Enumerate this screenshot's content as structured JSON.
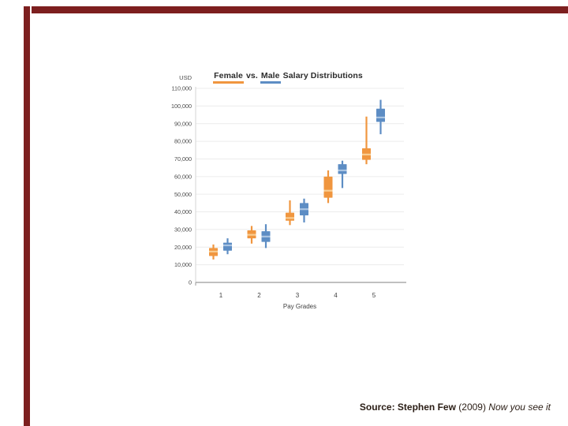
{
  "slide": {
    "accent_color": "#7d1f1f",
    "source": {
      "label_bold": "Source: Stephen Few",
      "year": " (2009) ",
      "book_italic": "Now you see it"
    }
  },
  "chart_data": {
    "type": "boxplot",
    "title": "Female vs. Male Salary Distributions",
    "title_parts": {
      "female": "Female",
      "vs": " vs. ",
      "male": "Male",
      "rest": " Salary Distributions"
    },
    "y_axis": {
      "label": "USD",
      "min": 0,
      "max": 110000,
      "tick_step": 10000,
      "tick_labels": [
        "0",
        "10,000",
        "20,000",
        "30,000",
        "40,000",
        "50,000",
        "60,000",
        "70,000",
        "80,000",
        "90,000",
        "100,000",
        "110,000"
      ]
    },
    "x_axis": {
      "label": "Pay Grades",
      "categories": [
        "1",
        "2",
        "3",
        "4",
        "5"
      ]
    },
    "grid": true,
    "legend": "colored underlines beneath the words Female and Male in the title",
    "series": [
      {
        "name": "Female",
        "color": "#f0963f",
        "median_color": "#f9cd92",
        "boxes": [
          {
            "min": 13000,
            "q1": 15000,
            "median": 17500,
            "q3": 19500,
            "max": 21500
          },
          {
            "min": 22000,
            "q1": 25000,
            "median": 27000,
            "q3": 29500,
            "max": 32000
          },
          {
            "min": 32500,
            "q1": 35000,
            "median": 36500,
            "q3": 39500,
            "max": 46500
          },
          {
            "min": 45000,
            "q1": 48000,
            "median": 52000,
            "q3": 60000,
            "max": 63500
          },
          {
            "min": 67000,
            "q1": 69500,
            "median": 72500,
            "q3": 76000,
            "max": 94000
          }
        ]
      },
      {
        "name": "Male",
        "color": "#5d8dc4",
        "median_color": "#a9c4e2",
        "boxes": [
          {
            "min": 16000,
            "q1": 18000,
            "median": 21000,
            "q3": 22500,
            "max": 25000
          },
          {
            "min": 19500,
            "q1": 23000,
            "median": 26000,
            "q3": 29000,
            "max": 33000
          },
          {
            "min": 34000,
            "q1": 38000,
            "median": 41500,
            "q3": 45000,
            "max": 47500
          },
          {
            "min": 53500,
            "q1": 61500,
            "median": 63500,
            "q3": 67000,
            "max": 69000
          },
          {
            "min": 84000,
            "q1": 91000,
            "median": 93500,
            "q3": 98500,
            "max": 103500
          }
        ]
      }
    ]
  }
}
